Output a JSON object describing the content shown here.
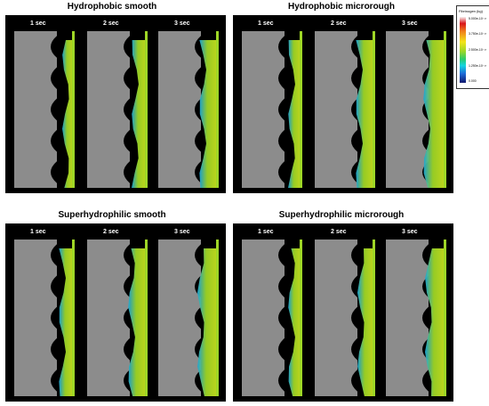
{
  "figure": {
    "panels": [
      {
        "title": "Hydrophobic smooth",
        "frames": [
          "1 sec",
          "2 sec",
          "3 sec"
        ]
      },
      {
        "title": "Hydrophobic microrough",
        "frames": [
          "1 sec",
          "2 sec",
          "3 sec"
        ]
      },
      {
        "title": "Superhydrophilic smooth",
        "frames": [
          "1 sec",
          "2 sec",
          "3 sec"
        ]
      },
      {
        "title": "Superhydrophilic microrough",
        "frames": [
          "1 sec",
          "2 sec",
          "3 sec"
        ]
      }
    ],
    "legend": {
      "title": "Fibrinogen (kg)",
      "ticks": [
        "5.000e-10⁻¹³",
        "3.750e-10⁻¹³",
        "2.500e-10⁻¹³",
        "1.250e-10⁻¹³",
        "0.000"
      ]
    },
    "colors": {
      "background": "#000000",
      "implant": "#8c8c8c",
      "fluid": "#9ed626"
    }
  }
}
